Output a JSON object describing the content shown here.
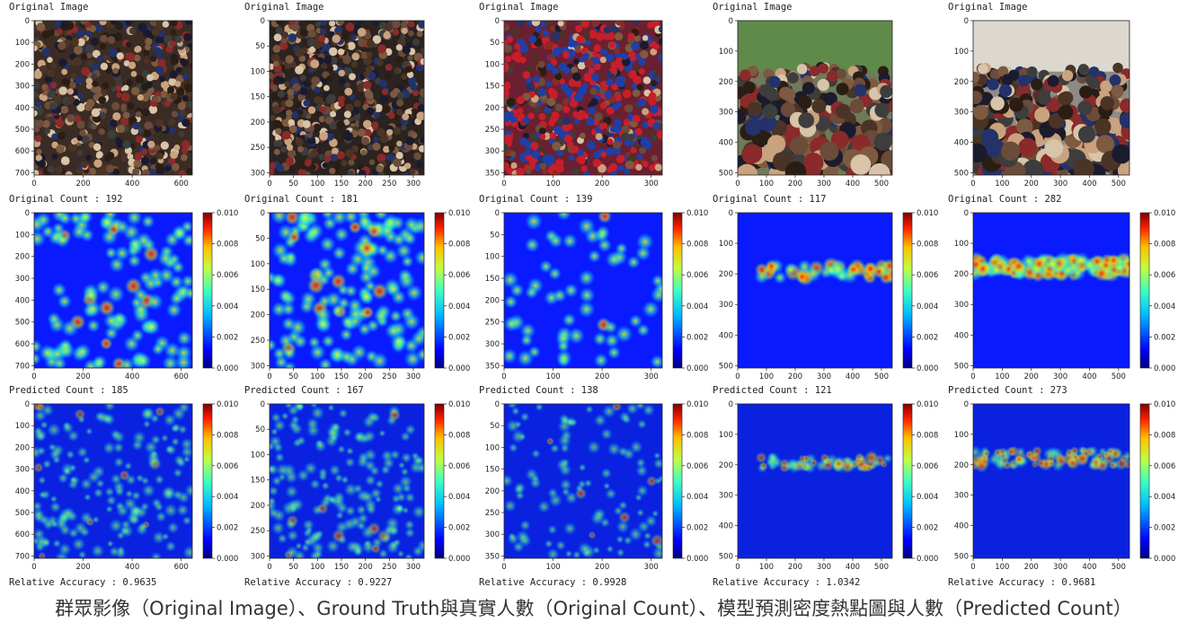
{
  "caption": "群眾影像（Original Image）、Ground Truth與真實人數（Original Count）、模型預測密度熱點圖與人數（Predicted Count）",
  "row_titles": {
    "image": "Original Image",
    "gt": "Original Count :",
    "pred": "Predicted Count :",
    "accuracy": "Relative Accuracy :"
  },
  "chart_data": [
    {
      "type": "heatmap",
      "column": 1,
      "original_count": "192",
      "predicted_count": "185",
      "relative_accuracy": "0.9635",
      "image_xlim": [
        0,
        700
      ],
      "image_xticks": [
        "0",
        "200",
        "400",
        "600"
      ],
      "image_ylim": [
        0,
        700
      ],
      "image_yticks": [
        "0",
        "100",
        "200",
        "300",
        "400",
        "500",
        "600",
        "700"
      ],
      "gt_xticks": [
        "0",
        "200",
        "400",
        "600"
      ],
      "gt_yticks": [
        "0",
        "100",
        "200",
        "300",
        "400",
        "500",
        "600",
        "700"
      ],
      "pred_xticks": [
        "0",
        "200",
        "400",
        "600"
      ],
      "pred_yticks": [
        "0",
        "100",
        "200",
        "300",
        "400",
        "500",
        "600",
        "700"
      ],
      "colorbar_ticks": [
        "0.010",
        "0.008",
        "0.006",
        "0.004",
        "0.002",
        "0.000"
      ],
      "colorbar_range": [
        0,
        0.01
      ]
    },
    {
      "type": "heatmap",
      "column": 2,
      "original_count": "181",
      "predicted_count": "167",
      "relative_accuracy": "0.9227",
      "image_xticks": [
        "0",
        "50",
        "100",
        "150",
        "200",
        "250",
        "300"
      ],
      "image_yticks": [
        "0",
        "50",
        "100",
        "150",
        "200",
        "250",
        "300"
      ],
      "gt_xticks": [
        "0",
        "50",
        "100",
        "150",
        "200",
        "250",
        "300"
      ],
      "gt_yticks": [
        "0",
        "50",
        "100",
        "150",
        "200",
        "250",
        "300"
      ],
      "pred_xticks": [
        "0",
        "50",
        "100",
        "150",
        "200",
        "250",
        "300"
      ],
      "pred_yticks": [
        "0",
        "50",
        "100",
        "150",
        "200",
        "250",
        "300"
      ],
      "colorbar_ticks": [
        "0.010",
        "0.008",
        "0.006",
        "0.004",
        "0.002",
        "0.000"
      ],
      "colorbar_range": [
        0,
        0.01
      ]
    },
    {
      "type": "heatmap",
      "column": 3,
      "original_count": "139",
      "predicted_count": "138",
      "relative_accuracy": "0.9928",
      "image_xticks": [
        "0",
        "100",
        "200",
        "300"
      ],
      "image_yticks": [
        "0",
        "50",
        "100",
        "150",
        "200",
        "250",
        "300",
        "350"
      ],
      "gt_xticks": [
        "0",
        "100",
        "200",
        "300"
      ],
      "gt_yticks": [
        "0",
        "50",
        "100",
        "150",
        "200",
        "250",
        "300",
        "350"
      ],
      "pred_xticks": [
        "0",
        "100",
        "200",
        "300"
      ],
      "pred_yticks": [
        "0",
        "50",
        "100",
        "150",
        "200",
        "250",
        "300",
        "350"
      ],
      "colorbar_ticks": [
        "0.010",
        "0.008",
        "0.006",
        "0.004",
        "0.002",
        "0.000"
      ],
      "colorbar_range": [
        0,
        0.01
      ]
    },
    {
      "type": "heatmap",
      "column": 4,
      "original_count": "117",
      "predicted_count": "121",
      "relative_accuracy": "1.0342",
      "image_xticks": [
        "0",
        "100",
        "200",
        "300",
        "400",
        "500"
      ],
      "image_yticks": [
        "0",
        "100",
        "200",
        "300",
        "400",
        "500"
      ],
      "gt_xticks": [
        "0",
        "100",
        "200",
        "300",
        "400",
        "500"
      ],
      "gt_yticks": [
        "0",
        "100",
        "200",
        "300",
        "400",
        "500"
      ],
      "pred_xticks": [
        "0",
        "100",
        "200",
        "300",
        "400",
        "500"
      ],
      "pred_yticks": [
        "0",
        "100",
        "200",
        "300",
        "400",
        "500"
      ],
      "colorbar_ticks": [
        "0.010",
        "0.008",
        "0.006",
        "0.004",
        "0.002",
        "0.000"
      ],
      "colorbar_range": [
        0,
        0.01
      ]
    },
    {
      "type": "heatmap",
      "column": 5,
      "original_count": "282",
      "predicted_count": "273",
      "relative_accuracy": "0.9681",
      "image_xticks": [
        "0",
        "100",
        "200",
        "300",
        "400",
        "500"
      ],
      "image_yticks": [
        "0",
        "100",
        "200",
        "300",
        "400",
        "500"
      ],
      "gt_xticks": [
        "0",
        "100",
        "200",
        "300",
        "400",
        "500"
      ],
      "gt_yticks": [
        "0",
        "100",
        "200",
        "300",
        "400",
        "500"
      ],
      "pred_xticks": [
        "0",
        "100",
        "200",
        "300",
        "400",
        "500"
      ],
      "pred_yticks": [
        "0",
        "100",
        "200",
        "300",
        "400",
        "500"
      ],
      "colorbar_ticks": [
        "0.010",
        "0.008",
        "0.006",
        "0.004",
        "0.002",
        "0.000"
      ],
      "colorbar_range": [
        0,
        0.01
      ]
    }
  ]
}
